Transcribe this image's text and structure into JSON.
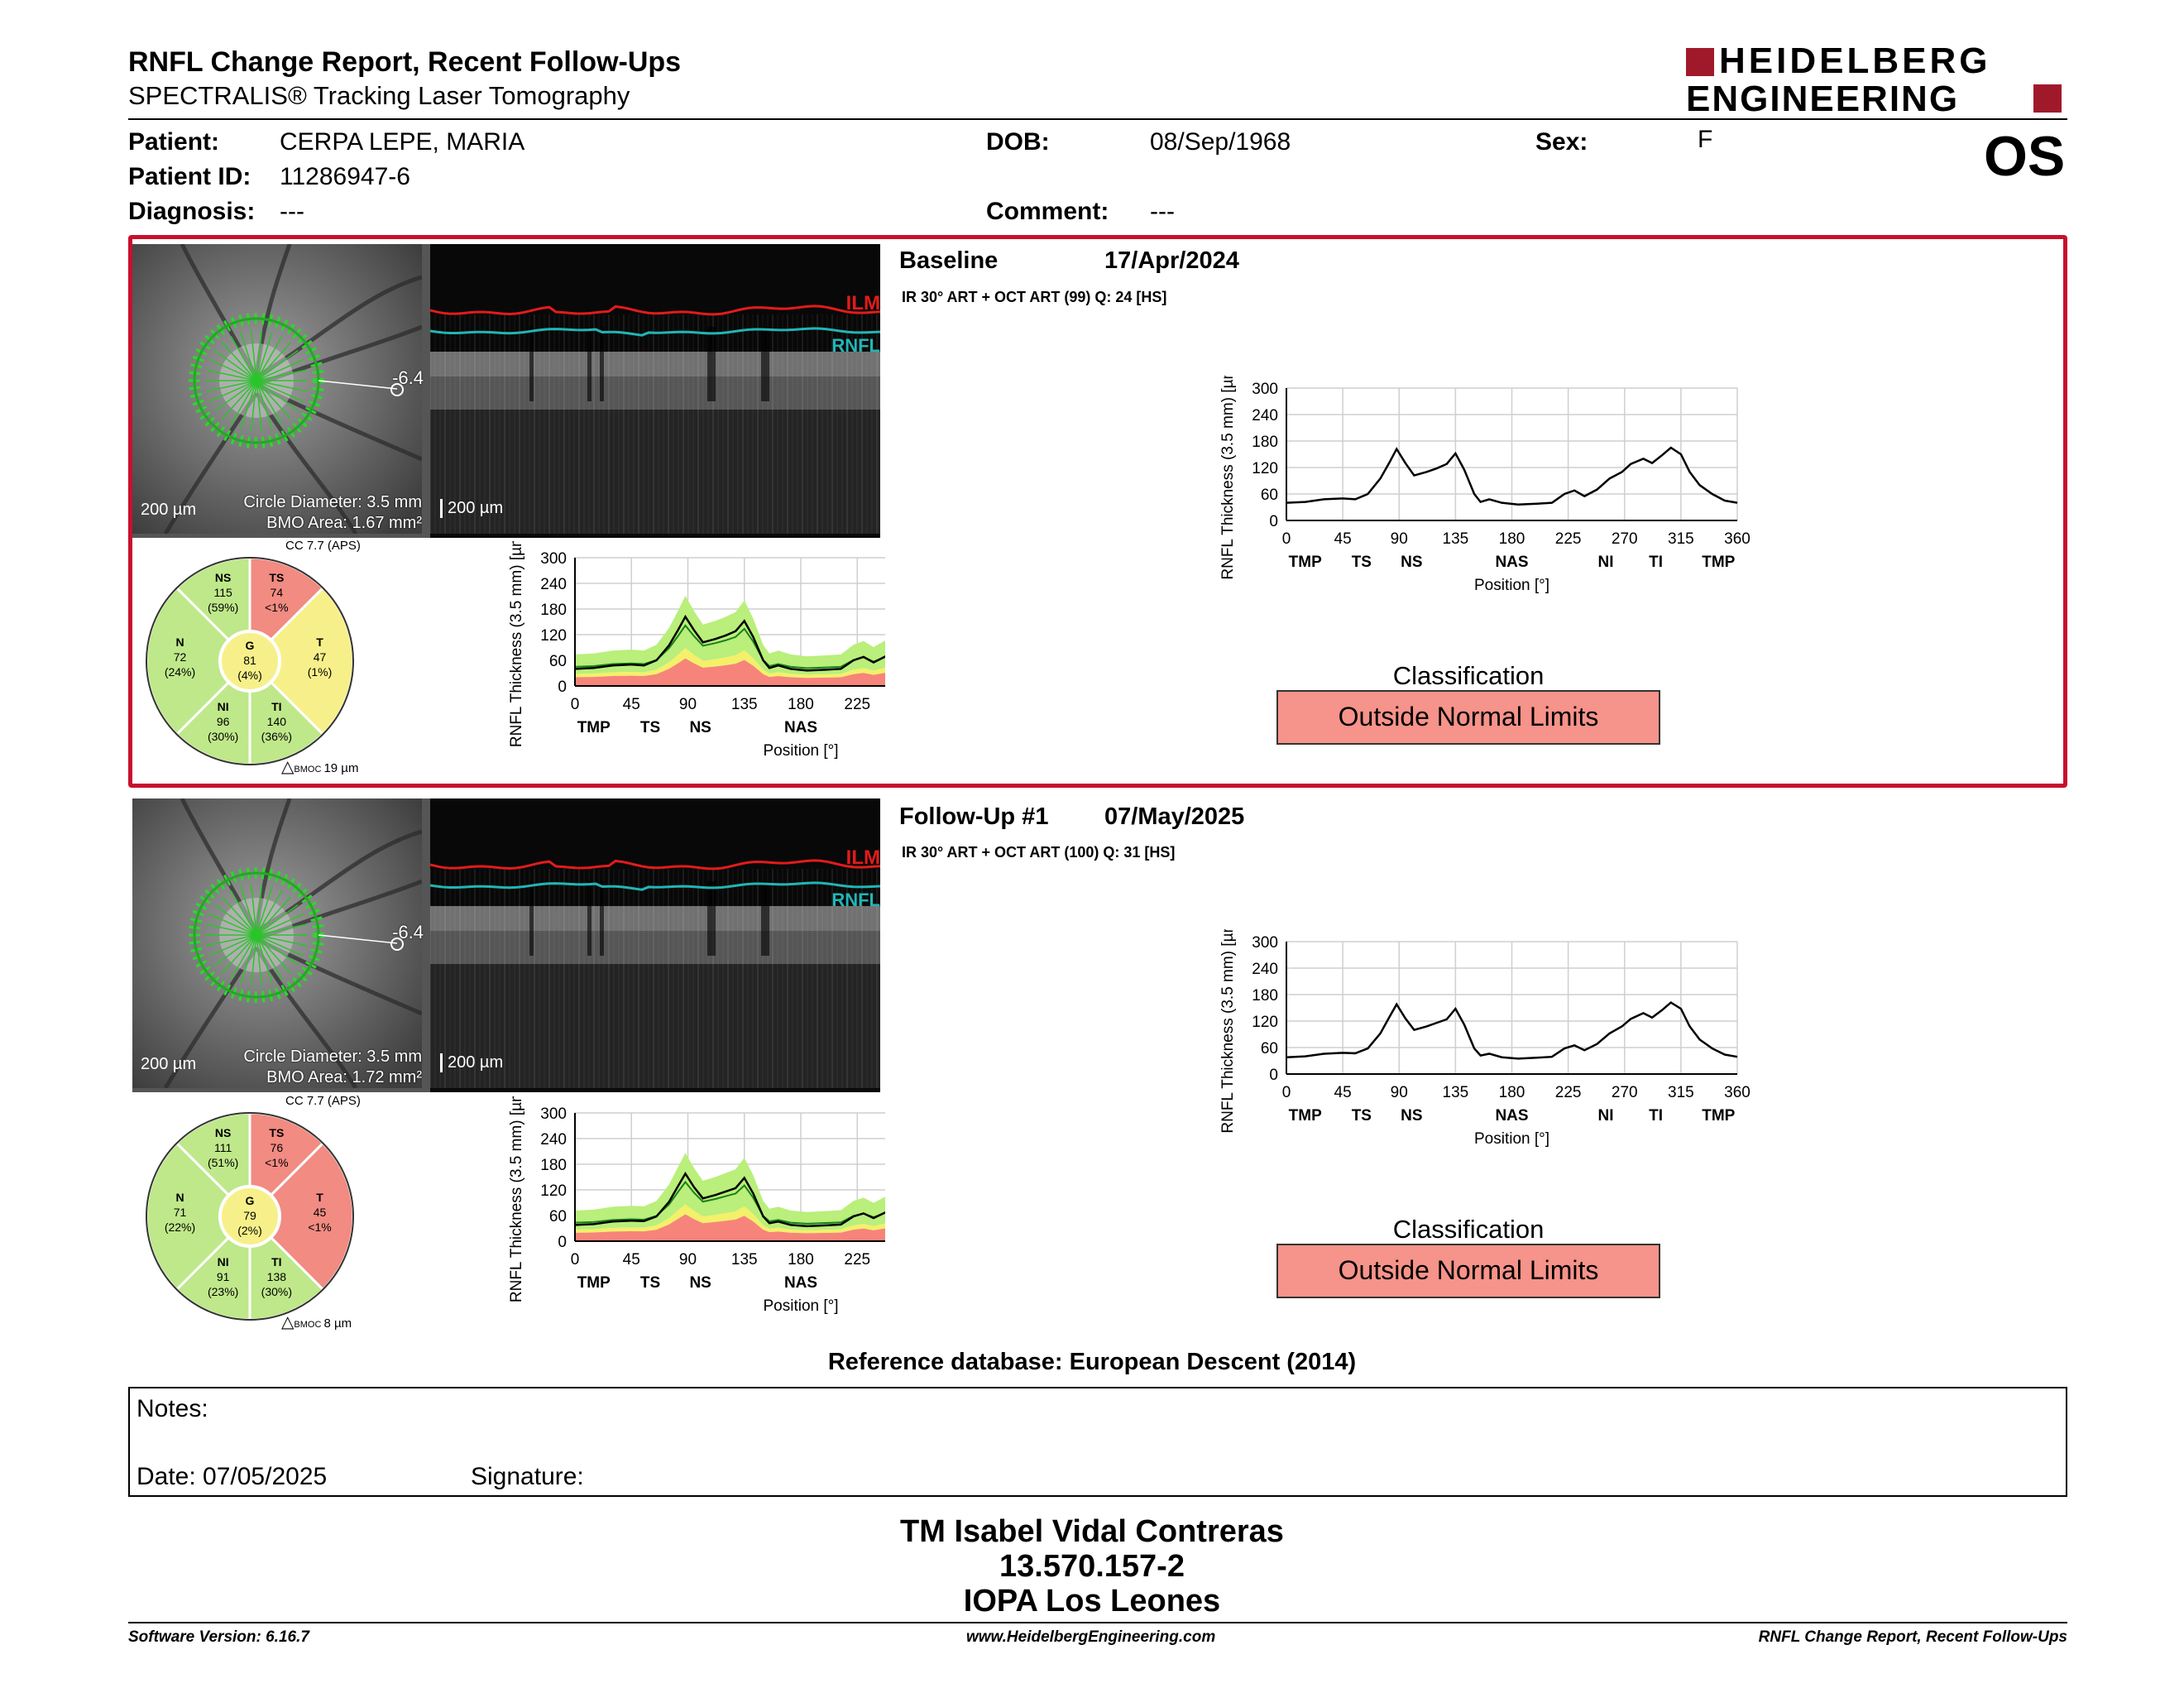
{
  "header": {
    "title": "RNFL Change Report, Recent Follow-Ups",
    "subtitle": "SPECTRALIS® Tracking Laser Tomography",
    "logo_line1": "HEIDELBERG",
    "logo_line2": "ENGINEERING",
    "eye": "OS"
  },
  "patient": {
    "patient_label": "Patient:",
    "patient_value": "CERPA LEPE, MARIA",
    "id_label": "Patient ID:",
    "id_value": "11286947-6",
    "diagnosis_label": "Diagnosis:",
    "diagnosis_value": "---",
    "dob_label": "DOB:",
    "dob_value": "08/Sep/1968",
    "comment_label": "Comment:",
    "comment_value": "---",
    "sex_label": "Sex:",
    "sex_value": "F"
  },
  "exams": [
    {
      "label": "Baseline",
      "date": "17/Apr/2024",
      "details": "IR 30° ART + OCT ART (99) Q: 24 [HS]",
      "selected": true,
      "slo_scale": "200 µm",
      "circle": "Circle Diameter: 3.5 mm",
      "bmo": "BMO Area: 1.67 mm²",
      "angle": "-6.4",
      "oct_scale": "200 µm",
      "ilm": "ILM",
      "rnfl": "RNFL",
      "cc": "CC 7.7 (APS)",
      "bmoc": "19 µm",
      "sectors": {
        "NS": {
          "v": "115",
          "p": "(59%)",
          "c": "#bfe88a"
        },
        "TS": {
          "v": "74",
          "p": "<1%",
          "c": "#f28b82"
        },
        "T": {
          "v": "47",
          "p": "(1%)",
          "c": "#f7f08a"
        },
        "TI": {
          "v": "140",
          "p": "(36%)",
          "c": "#bfe88a"
        },
        "NI": {
          "v": "96",
          "p": "(30%)",
          "c": "#bfe88a"
        },
        "N": {
          "v": "72",
          "p": "(24%)",
          "c": "#bfe88a"
        },
        "G": {
          "v": "81",
          "p": "(4%)",
          "c": "#f7f08a"
        }
      },
      "classification_title": "Classification",
      "classification": "Outside Normal Limits",
      "profile": [
        [
          0,
          40
        ],
        [
          15,
          42
        ],
        [
          30,
          48
        ],
        [
          45,
          50
        ],
        [
          55,
          48
        ],
        [
          65,
          60
        ],
        [
          75,
          95
        ],
        [
          82,
          130
        ],
        [
          88,
          162
        ],
        [
          95,
          130
        ],
        [
          102,
          102
        ],
        [
          112,
          110
        ],
        [
          120,
          118
        ],
        [
          128,
          128
        ],
        [
          135,
          152
        ],
        [
          142,
          115
        ],
        [
          150,
          60
        ],
        [
          155,
          42
        ],
        [
          162,
          48
        ],
        [
          172,
          40
        ],
        [
          185,
          36
        ],
        [
          200,
          38
        ],
        [
          212,
          40
        ],
        [
          222,
          60
        ],
        [
          230,
          68
        ],
        [
          238,
          55
        ],
        [
          248,
          70
        ],
        [
          258,
          95
        ],
        [
          268,
          110
        ],
        [
          275,
          128
        ],
        [
          285,
          140
        ],
        [
          292,
          130
        ],
        [
          300,
          148
        ],
        [
          307,
          165
        ],
        [
          315,
          150
        ],
        [
          322,
          110
        ],
        [
          330,
          80
        ],
        [
          340,
          60
        ],
        [
          350,
          45
        ],
        [
          360,
          40
        ]
      ]
    },
    {
      "label": "Follow-Up #1",
      "date": "07/May/2025",
      "details": "IR 30° ART + OCT ART (100) Q: 31 [HS]",
      "selected": false,
      "slo_scale": "200 µm",
      "circle": "Circle Diameter: 3.5 mm",
      "bmo": "BMO Area: 1.72 mm²",
      "angle": "-6.4",
      "oct_scale": "200 µm",
      "ilm": "ILM",
      "rnfl": "RNFL",
      "cc": "CC 7.7 (APS)",
      "bmoc": "8 µm",
      "sectors": {
        "NS": {
          "v": "111",
          "p": "(51%)",
          "c": "#bfe88a"
        },
        "TS": {
          "v": "76",
          "p": "<1%",
          "c": "#f28b82"
        },
        "T": {
          "v": "45",
          "p": "<1%",
          "c": "#f28b82"
        },
        "TI": {
          "v": "138",
          "p": "(30%)",
          "c": "#bfe88a"
        },
        "NI": {
          "v": "91",
          "p": "(23%)",
          "c": "#bfe88a"
        },
        "N": {
          "v": "71",
          "p": "(22%)",
          "c": "#bfe88a"
        },
        "G": {
          "v": "79",
          "p": "(2%)",
          "c": "#f7f08a"
        }
      },
      "classification_title": "Classification",
      "classification": "Outside Normal Limits",
      "profile": [
        [
          0,
          38
        ],
        [
          15,
          40
        ],
        [
          30,
          46
        ],
        [
          45,
          48
        ],
        [
          55,
          47
        ],
        [
          65,
          58
        ],
        [
          75,
          92
        ],
        [
          82,
          128
        ],
        [
          88,
          158
        ],
        [
          95,
          126
        ],
        [
          102,
          100
        ],
        [
          112,
          108
        ],
        [
          120,
          116
        ],
        [
          128,
          124
        ],
        [
          135,
          148
        ],
        [
          142,
          112
        ],
        [
          150,
          58
        ],
        [
          155,
          42
        ],
        [
          162,
          46
        ],
        [
          172,
          38
        ],
        [
          185,
          35
        ],
        [
          200,
          37
        ],
        [
          212,
          39
        ],
        [
          222,
          58
        ],
        [
          230,
          65
        ],
        [
          238,
          54
        ],
        [
          248,
          68
        ],
        [
          258,
          92
        ],
        [
          268,
          108
        ],
        [
          275,
          125
        ],
        [
          285,
          138
        ],
        [
          292,
          128
        ],
        [
          300,
          145
        ],
        [
          307,
          162
        ],
        [
          315,
          148
        ],
        [
          322,
          108
        ],
        [
          330,
          78
        ],
        [
          340,
          58
        ],
        [
          350,
          44
        ],
        [
          360,
          39
        ]
      ]
    }
  ],
  "chart_data": {
    "type": "line",
    "ylabel": "RNFL Thickness (3.5 mm) [µm]",
    "xlabel": "Position [°]",
    "xlim": [
      0,
      360
    ],
    "ylim": [
      0,
      300
    ],
    "x_ticks": [
      "0",
      "45",
      "90",
      "135",
      "180",
      "225",
      "270",
      "315",
      "360"
    ],
    "y_ticks": [
      "300",
      "240",
      "180",
      "120",
      "60",
      "0"
    ],
    "sector_ticks": [
      [
        "TMP",
        15
      ],
      [
        "TS",
        60
      ],
      [
        "NS",
        100
      ],
      [
        "NAS",
        180
      ],
      [
        "NI",
        255
      ],
      [
        "TI",
        295
      ],
      [
        "TMP",
        345
      ]
    ]
  },
  "reference": "Reference database: European Descent (2014)",
  "notes": {
    "label": "Notes:",
    "date": "Date: 07/05/2025",
    "signature": "Signature:"
  },
  "signer": {
    "name": "TM Isabel Vidal Contreras",
    "id": "13.570.157-2",
    "org": "IOPA Los Leones"
  },
  "footer": {
    "version": "Software Version: 6.16.7",
    "url": "www.HeidelbergEngineering.com",
    "report": "RNFL Change Report, Recent Follow-Ups"
  }
}
